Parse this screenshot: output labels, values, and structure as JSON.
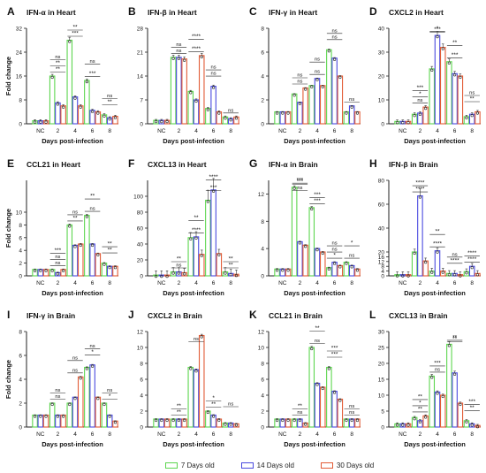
{
  "figure": {
    "ylabel": "Fold change",
    "xlabel": "Days post-infection",
    "categories": [
      "NC",
      "2",
      "4",
      "6",
      "8"
    ],
    "colors": {
      "7": "#5dd64f",
      "14": "#4a4adf",
      "30": "#e25b36"
    }
  },
  "legend": [
    {
      "label": "7  Days old",
      "color": "#5dd64f"
    },
    {
      "label": "14 Days old",
      "color": "#4a4adf"
    },
    {
      "label": "30 Days old",
      "color": "#e25b36"
    }
  ],
  "chart_data": [
    {
      "letter": "A",
      "title": "IFN-α in Heart",
      "type": "bar",
      "ylim": [
        0,
        32
      ],
      "ticks": [
        0,
        8,
        16,
        24,
        32
      ],
      "categories": [
        "NC",
        "2",
        "4",
        "6",
        "8"
      ],
      "series": [
        {
          "name": "7 Days old",
          "values": [
            1,
            16,
            28,
            14.5,
            3
          ]
        },
        {
          "name": "14 Days old",
          "values": [
            1,
            7,
            9,
            4.5,
            2
          ]
        },
        {
          "name": "30 Days old",
          "values": [
            1,
            6,
            6,
            4,
            2.5
          ]
        }
      ],
      "annotations": [
        "**",
        "**",
        "ns",
        "***",
        "**",
        "ns",
        "***",
        "**",
        "ns"
      ]
    },
    {
      "letter": "B",
      "title": "IFN-β in Heart",
      "type": "bar",
      "ylim": [
        0,
        28
      ],
      "ticks": [
        0,
        7,
        14,
        21,
        28
      ],
      "categories": [
        "NC",
        "2",
        "4",
        "6",
        "8"
      ],
      "series": [
        {
          "name": "7 Days old",
          "values": [
            1,
            19.5,
            9.5,
            4.5,
            2
          ]
        },
        {
          "name": "14 Days old",
          "values": [
            1,
            19.5,
            7,
            11,
            1.5
          ]
        },
        {
          "name": "30 Days old",
          "values": [
            1,
            19,
            20,
            3.5,
            2
          ]
        }
      ],
      "annotations": [
        "ns",
        "ns",
        "****",
        "****",
        "ns",
        "ns",
        "ns"
      ]
    },
    {
      "letter": "C",
      "title": "IFN-γ in Heart",
      "type": "bar",
      "ylim": [
        0,
        8
      ],
      "ticks": [
        0,
        2,
        4,
        6,
        8
      ],
      "categories": [
        "NC",
        "2",
        "4",
        "6",
        "8"
      ],
      "series": [
        {
          "name": "7 Days old",
          "values": [
            1,
            2.5,
            3.2,
            6.2,
            1
          ]
        },
        {
          "name": "14 Days old",
          "values": [
            1,
            1.8,
            3.8,
            5.5,
            1.5
          ]
        },
        {
          "name": "30 Days old",
          "values": [
            1,
            3,
            3.2,
            4,
            1
          ]
        }
      ],
      "annotations": [
        "ns",
        "ns",
        "ns",
        "ns",
        "ns",
        "ns",
        "ns"
      ]
    },
    {
      "letter": "D",
      "title": "CXCL2 in Heart",
      "type": "bar",
      "ylim": [
        0,
        40
      ],
      "ticks": [
        0,
        10,
        20,
        30,
        40
      ],
      "categories": [
        "NC",
        "2",
        "4",
        "6",
        "8"
      ],
      "series": [
        {
          "name": "7 Days old",
          "values": [
            1,
            4,
            23,
            26,
            3
          ]
        },
        {
          "name": "14 Days old",
          "values": [
            1,
            4.5,
            37,
            21,
            4
          ]
        },
        {
          "name": "30 Days old",
          "values": [
            1,
            7,
            32,
            20,
            5
          ]
        }
      ],
      "annotations": [
        "ns",
        "*",
        "***",
        "*",
        "***",
        "**",
        "***",
        "**",
        "ns"
      ]
    },
    {
      "letter": "E",
      "title": "CCL21 in Heart",
      "type": "bar",
      "ylim": [
        0,
        15
      ],
      "ticks": [
        0,
        2,
        4,
        6,
        8,
        10
      ],
      "categories": [
        "NC",
        "2",
        "4",
        "6",
        "8"
      ],
      "series": [
        {
          "name": "7 Days old",
          "values": [
            1,
            1,
            8,
            9.5,
            2
          ]
        },
        {
          "name": "14 Days old",
          "values": [
            1,
            0.5,
            4.8,
            5,
            1.5
          ]
        },
        {
          "name": "30 Days old",
          "values": [
            1,
            1,
            5,
            3.5,
            1.5
          ]
        }
      ],
      "annotations": [
        "ns",
        "ns",
        "***",
        "**",
        "ns",
        "**",
        "ns",
        "**",
        "**"
      ]
    },
    {
      "letter": "F",
      "title": "CXCL13 in Heart",
      "type": "bar",
      "ylim": [
        0,
        120
      ],
      "ticks": [
        0,
        20,
        40,
        60,
        80,
        100
      ],
      "categories": [
        "NC",
        "2",
        "4",
        "6",
        "8"
      ],
      "series": [
        {
          "name": "7 Days old",
          "values": [
            1,
            5,
            48,
            95,
            5
          ]
        },
        {
          "name": "14 Days old",
          "values": [
            1,
            5,
            49,
            108,
            3
          ]
        },
        {
          "name": "30 Days old",
          "values": [
            1,
            4,
            27,
            28,
            2
          ]
        }
      ],
      "annotations": [
        "ns",
        "**",
        "**",
        "****",
        "****",
        "***",
        "**",
        "**"
      ]
    },
    {
      "letter": "G",
      "title": "IFN-α in Brain",
      "type": "bar",
      "ylim": [
        0,
        14
      ],
      "ticks": [
        0,
        4,
        8,
        12
      ],
      "categories": [
        "NC",
        "2",
        "4",
        "6",
        "8"
      ],
      "series": [
        {
          "name": "7 Days old",
          "values": [
            1,
            13,
            10,
            1.2,
            2
          ]
        },
        {
          "name": "14 Days old",
          "values": [
            1,
            5,
            4,
            2,
            1.5
          ]
        },
        {
          "name": "30 Days old",
          "values": [
            1,
            4.5,
            3.5,
            1.5,
            1
          ]
        }
      ],
      "annotations": [
        "***",
        "***",
        "ns",
        "***",
        "***",
        "ns",
        "*",
        "ns",
        "*",
        "ns"
      ]
    },
    {
      "letter": "H",
      "title": "IFN-β in Brain",
      "type": "bar",
      "ylim": [
        0,
        80
      ],
      "ticks": [
        0,
        4,
        8,
        12,
        16,
        20,
        40,
        60,
        80
      ],
      "categories": [
        "NC",
        "2",
        "4",
        "6",
        "8"
      ],
      "series": [
        {
          "name": "7 Days old",
          "values": [
            1,
            20,
            4,
            2,
            3.5
          ]
        },
        {
          "name": "14 Days old",
          "values": [
            1,
            67,
            21,
            2,
            8
          ]
        },
        {
          "name": "30 Days old",
          "values": [
            1,
            12.5,
            4,
            1,
            2
          ]
        }
      ],
      "annotations": [
        "****",
        "****",
        "**",
        "****",
        "****",
        "ns",
        "****",
        "****"
      ]
    },
    {
      "letter": "I",
      "title": "IFN-γ in Brain",
      "type": "bar",
      "ylim": [
        0,
        8
      ],
      "ticks": [
        0,
        2,
        4,
        6,
        8
      ],
      "categories": [
        "NC",
        "2",
        "4",
        "6",
        "8"
      ],
      "series": [
        {
          "name": "7 Days old",
          "values": [
            1,
            2,
            2,
            5,
            2
          ]
        },
        {
          "name": "14 Days old",
          "values": [
            1,
            1,
            2.5,
            5.2,
            1
          ]
        },
        {
          "name": "30 Days old",
          "values": [
            1,
            1,
            4.2,
            2.5,
            0.5
          ]
        }
      ],
      "annotations": [
        "ns",
        "ns",
        "ns",
        "ns",
        "*",
        "ns",
        "*",
        "ns"
      ]
    },
    {
      "letter": "J",
      "title": "CXCL2 in Brain",
      "type": "bar",
      "ylim": [
        0,
        12
      ],
      "ticks": [
        0,
        2,
        4,
        6,
        8,
        10,
        12
      ],
      "categories": [
        "NC",
        "2",
        "4",
        "6",
        "8"
      ],
      "series": [
        {
          "name": "7 Days old",
          "values": [
            1,
            1,
            7.5,
            2,
            0.5
          ]
        },
        {
          "name": "14 Days old",
          "values": [
            1,
            1,
            7.2,
            1.5,
            0.5
          ]
        },
        {
          "name": "30 Days old",
          "values": [
            1,
            1,
            11.5,
            1,
            0.4
          ]
        }
      ],
      "annotations": [
        "**",
        "**",
        "ns",
        "**",
        "*",
        "ns"
      ]
    },
    {
      "letter": "K",
      "title": "CCL21 in Brain",
      "type": "bar",
      "ylim": [
        0,
        12
      ],
      "ticks": [
        0,
        2,
        4,
        6,
        8,
        10,
        12
      ],
      "categories": [
        "NC",
        "2",
        "4",
        "6",
        "8"
      ],
      "series": [
        {
          "name": "7 Days old",
          "values": [
            1,
            1,
            10,
            7.5,
            1
          ]
        },
        {
          "name": "14 Days old",
          "values": [
            1,
            1,
            5.5,
            4.5,
            1
          ]
        },
        {
          "name": "30 Days old",
          "values": [
            1,
            0.5,
            5,
            3.5,
            1
          ]
        }
      ],
      "annotations": [
        "ns",
        "**",
        "**",
        "ns",
        "***",
        "***",
        "ns",
        "ns"
      ]
    },
    {
      "letter": "L",
      "title": "CXCL13 in Brain",
      "type": "bar",
      "ylim": [
        0,
        30
      ],
      "ticks": [
        0,
        5,
        10,
        15,
        20,
        25,
        30
      ],
      "categories": [
        "NC",
        "2",
        "4",
        "6",
        "8"
      ],
      "series": [
        {
          "name": "7 Days old",
          "values": [
            1,
            3,
            16,
            26,
            2
          ]
        },
        {
          "name": "14 Days old",
          "values": [
            1,
            2,
            11,
            17,
            1
          ]
        },
        {
          "name": "30 Days old",
          "values": [
            1,
            3.5,
            10,
            7.5,
            0.5
          ]
        }
      ],
      "annotations": [
        "**",
        "*",
        "**",
        "ns",
        "***",
        "**",
        "**",
        "**",
        "***"
      ]
    }
  ]
}
